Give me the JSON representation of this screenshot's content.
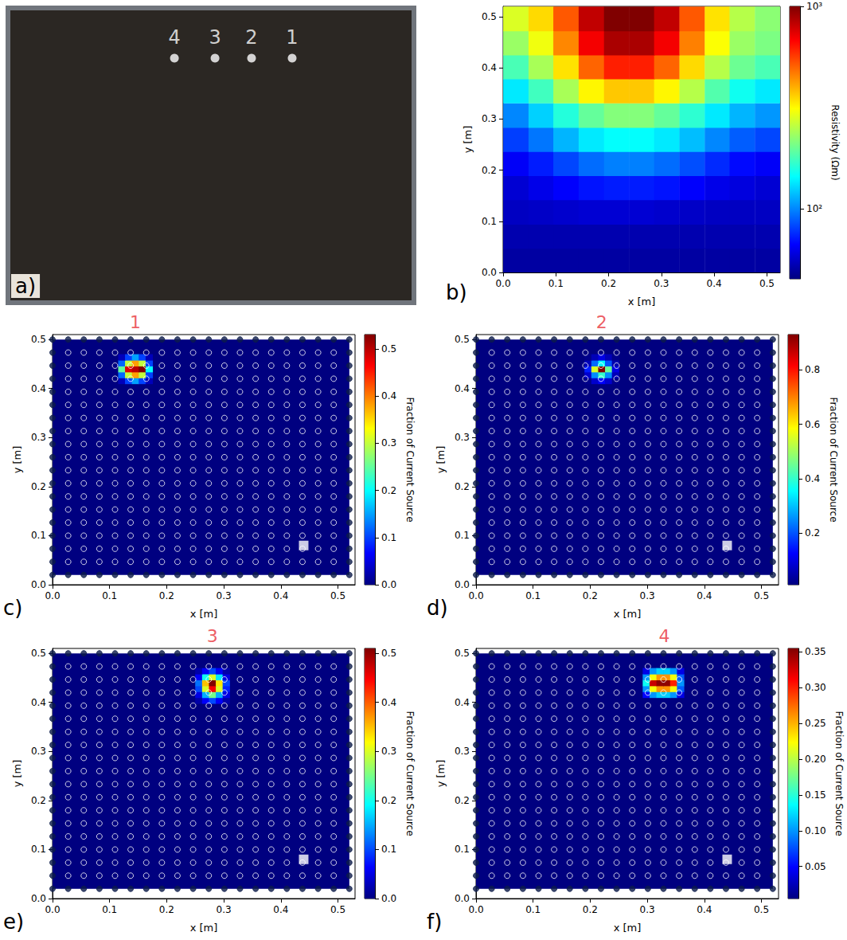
{
  "chart_data": [
    {
      "panel": "a)",
      "type": "scatter",
      "x": [
        0.41,
        0.51,
        0.6,
        0.7
      ],
      "values": [
        0.83,
        0.83,
        0.83,
        0.83
      ],
      "point_labels": [
        "4",
        "3",
        "2",
        "1"
      ],
      "color": "#ffffff",
      "marker": "circle",
      "xlim": [
        0,
        1
      ],
      "ylim": [
        0,
        1
      ],
      "tick_labels": false
    },
    {
      "panel": "b)",
      "type": "heatmap",
      "xlabel": "x [m]",
      "ylabel": "y [m]",
      "xlim": [
        0,
        0.525
      ],
      "ylim": [
        0,
        0.52
      ],
      "xticks": [
        {
          "value": 0,
          "label": "0.0"
        },
        0.1,
        0.2,
        0.3,
        0.4,
        0.5
      ],
      "yticks": [
        {
          "value": 0,
          "label": "0.0"
        },
        0.1,
        0.2,
        0.3,
        0.4,
        0.5
      ],
      "colorbar": {
        "label": "Resistivity (Ωm)",
        "log": true,
        "range": [
          45,
          1000
        ],
        "ticks": [
          {
            "value": 100,
            "label": "10²"
          },
          {
            "value": 1000,
            "label": "10³"
          }
        ]
      },
      "cells": {
        "x": [
          0.024,
          0.072,
          0.119,
          0.167,
          0.215,
          0.263,
          0.31,
          0.358,
          0.406,
          0.453,
          0.501
        ],
        "y": [
          0.024,
          0.071,
          0.118,
          0.166,
          0.213,
          0.26,
          0.307,
          0.355,
          0.402,
          0.449,
          0.496
        ],
        "size": [
          0.0477,
          0.0473
        ],
        "values": [
          [
            50,
            50,
            50,
            50,
            50,
            50,
            50,
            50,
            50,
            50,
            50
          ],
          [
            52,
            52,
            52,
            52,
            52,
            52,
            52,
            52,
            52,
            52,
            52
          ],
          [
            55,
            56,
            57,
            58,
            58,
            58,
            57,
            56,
            55,
            55,
            55
          ],
          [
            58,
            62,
            66,
            70,
            72,
            72,
            70,
            66,
            62,
            60,
            58
          ],
          [
            65,
            72,
            82,
            92,
            98,
            98,
            92,
            84,
            75,
            68,
            65
          ],
          [
            80,
            95,
            115,
            135,
            145,
            145,
            135,
            118,
            100,
            88,
            82
          ],
          [
            100,
            125,
            160,
            195,
            215,
            215,
            195,
            165,
            135,
            115,
            105
          ],
          [
            135,
            175,
            240,
            320,
            370,
            370,
            320,
            250,
            185,
            150,
            135
          ],
          [
            180,
            240,
            340,
            500,
            620,
            620,
            500,
            350,
            250,
            200,
            180
          ],
          [
            230,
            300,
            450,
            700,
            880,
            880,
            700,
            460,
            310,
            230,
            210
          ],
          [
            280,
            350,
            520,
            820,
            1000,
            1000,
            820,
            520,
            340,
            250,
            220
          ]
        ]
      }
    },
    {
      "panel": "c)",
      "type": "heatmap",
      "xlabel": "x [m]",
      "ylabel": "y [m]",
      "xlim": [
        0,
        0.53
      ],
      "ylim": [
        0,
        0.51
      ],
      "xticks": [
        {
          "value": 0,
          "label": "0.0"
        },
        0.1,
        0.2,
        0.3,
        0.4,
        0.5
      ],
      "yticks": [
        {
          "value": 0,
          "label": "0.0"
        },
        0.1,
        0.2,
        0.3,
        0.4,
        0.5
      ],
      "domain": {
        "x": [
          0,
          0.52
        ],
        "y": [
          0.02,
          0.5
        ]
      },
      "electrodes": {
        "marker": "circle",
        "x": [
          0,
          0.0274,
          0.0547,
          0.0821,
          0.1095,
          0.1368,
          0.1642,
          0.1916,
          0.2189,
          0.2463,
          0.2737,
          0.3011,
          0.3284,
          0.3558,
          0.3832,
          0.4105,
          0.4379,
          0.4653,
          0.4926,
          0.52
        ],
        "y": [
          0.02,
          0.0467,
          0.0733,
          0.1,
          0.1267,
          0.1533,
          0.18,
          0.2067,
          0.2333,
          0.26,
          0.2867,
          0.3133,
          0.34,
          0.3667,
          0.3933,
          0.42,
          0.4467,
          0.4733,
          0.5
        ]
      },
      "sink": {
        "x": 0.44,
        "y": 0.08,
        "marker": "square"
      },
      "source": {
        "text": "1",
        "x": 0.145,
        "y": 0.535,
        "color": "#e8333b"
      },
      "colorbar": {
        "label": "Fraction of Current Source",
        "range": [
          0,
          0.53
        ],
        "ticks": [
          {
            "value": 0,
            "label": "0.0"
          },
          0.1,
          0.2,
          0.3,
          0.4,
          0.5
        ]
      },
      "cells": {
        "x": [
          0.121,
          0.133,
          0.145,
          0.157,
          0.169
        ],
        "y": [
          0.416,
          0.428,
          0.44,
          0.452,
          0.464
        ],
        "size": [
          0.012,
          0.012
        ],
        "values": [
          [
            0.03,
            0.1,
            0.15,
            0.1,
            0.03
          ],
          [
            0.12,
            0.3,
            0.38,
            0.3,
            0.1
          ],
          [
            0.25,
            0.48,
            0.5,
            0.53,
            0.2
          ],
          [
            0.12,
            0.3,
            0.38,
            0.3,
            0.1
          ],
          [
            0.03,
            0.1,
            0.15,
            0.1,
            0.03
          ]
        ]
      }
    },
    {
      "panel": "d)",
      "type": "heatmap",
      "xlabel": "x [m]",
      "ylabel": "y [m]",
      "xlim": [
        0,
        0.53
      ],
      "ylim": [
        0,
        0.51
      ],
      "xticks": [
        {
          "value": 0,
          "label": "0.0"
        },
        0.1,
        0.2,
        0.3,
        0.4,
        0.5
      ],
      "yticks": [
        {
          "value": 0,
          "label": "0.0"
        },
        0.1,
        0.2,
        0.3,
        0.4,
        0.5
      ],
      "domain": {
        "x": [
          0,
          0.52
        ],
        "y": [
          0.02,
          0.5
        ]
      },
      "electrodes": {
        "marker": "circle",
        "x": [
          0,
          0.0274,
          0.0547,
          0.0821,
          0.1095,
          0.1368,
          0.1642,
          0.1916,
          0.2189,
          0.2463,
          0.2737,
          0.3011,
          0.3284,
          0.3558,
          0.3832,
          0.4105,
          0.4379,
          0.4653,
          0.4926,
          0.52
        ],
        "y": [
          0.02,
          0.0467,
          0.0733,
          0.1,
          0.1267,
          0.1533,
          0.18,
          0.2067,
          0.2333,
          0.26,
          0.2867,
          0.3133,
          0.34,
          0.3667,
          0.3933,
          0.42,
          0.4467,
          0.4733,
          0.5
        ]
      },
      "sink": {
        "x": 0.44,
        "y": 0.08,
        "marker": "square"
      },
      "source": {
        "text": "2",
        "x": 0.22,
        "y": 0.535,
        "color": "#e8333b"
      },
      "colorbar": {
        "label": "Fraction of Current Source",
        "range": [
          0.01,
          0.93
        ],
        "ticks": [
          0.2,
          0.4,
          0.6,
          0.8
        ]
      },
      "cells": {
        "x": [
          0.196,
          0.208,
          0.22,
          0.232,
          0.244
        ],
        "y": [
          0.416,
          0.428,
          0.44,
          0.452,
          0.464
        ],
        "size": [
          0.012,
          0.012
        ],
        "values": [
          [
            0.02,
            0.08,
            0.12,
            0.08,
            0.02
          ],
          [
            0.08,
            0.25,
            0.4,
            0.25,
            0.06
          ],
          [
            0.15,
            0.55,
            0.93,
            0.45,
            0.1
          ],
          [
            0.06,
            0.22,
            0.35,
            0.2,
            0.05
          ],
          [
            0.02,
            0.06,
            0.1,
            0.06,
            0.02
          ]
        ]
      }
    },
    {
      "panel": "e)",
      "type": "heatmap",
      "xlabel": "x [m]",
      "ylabel": "y [m]",
      "xlim": [
        0,
        0.53
      ],
      "ylim": [
        0,
        0.51
      ],
      "xticks": [
        {
          "value": 0,
          "label": "0.0"
        },
        0.1,
        0.2,
        0.3,
        0.4,
        0.5
      ],
      "yticks": [
        {
          "value": 0,
          "label": "0.0"
        },
        0.1,
        0.2,
        0.3,
        0.4,
        0.5
      ],
      "domain": {
        "x": [
          0,
          0.52
        ],
        "y": [
          0.02,
          0.5
        ]
      },
      "electrodes": {
        "marker": "circle",
        "x": [
          0,
          0.0274,
          0.0547,
          0.0821,
          0.1095,
          0.1368,
          0.1642,
          0.1916,
          0.2189,
          0.2463,
          0.2737,
          0.3011,
          0.3284,
          0.3558,
          0.3832,
          0.4105,
          0.4379,
          0.4653,
          0.4926,
          0.52
        ],
        "y": [
          0.02,
          0.0467,
          0.0733,
          0.1,
          0.1267,
          0.1533,
          0.18,
          0.2067,
          0.2333,
          0.26,
          0.2867,
          0.3133,
          0.34,
          0.3667,
          0.3933,
          0.42,
          0.4467,
          0.4733,
          0.5
        ]
      },
      "sink": {
        "x": 0.44,
        "y": 0.08,
        "marker": "square"
      },
      "source": {
        "text": "3",
        "x": 0.28,
        "y": 0.535,
        "color": "#e8333b"
      },
      "colorbar": {
        "label": "Fraction of Current Source",
        "range": [
          0,
          0.51
        ],
        "ticks": [
          {
            "value": 0,
            "label": "0.0"
          },
          0.1,
          0.2,
          0.3,
          0.4,
          0.5
        ]
      },
      "cells": {
        "x": [
          0.256,
          0.268,
          0.28,
          0.292,
          0.304
        ],
        "y": [
          0.404,
          0.416,
          0.428,
          0.44,
          0.452,
          0.464
        ],
        "size": [
          0.012,
          0.012
        ],
        "values": [
          [
            0.02,
            0.06,
            0.1,
            0.06,
            0.02
          ],
          [
            0.05,
            0.15,
            0.25,
            0.15,
            0.05
          ],
          [
            0.1,
            0.3,
            0.45,
            0.3,
            0.08
          ],
          [
            0.12,
            0.35,
            0.51,
            0.33,
            0.1
          ],
          [
            0.06,
            0.2,
            0.3,
            0.18,
            0.05
          ],
          [
            0.02,
            0.06,
            0.1,
            0.06,
            0.02
          ]
        ]
      }
    },
    {
      "panel": "f)",
      "type": "heatmap",
      "xlabel": "x [m]",
      "ylabel": "y [m]",
      "xlim": [
        0,
        0.53
      ],
      "ylim": [
        0,
        0.51
      ],
      "xticks": [
        {
          "value": 0,
          "label": "0.0"
        },
        0.1,
        0.2,
        0.3,
        0.4,
        0.5
      ],
      "yticks": [
        {
          "value": 0,
          "label": "0.0"
        },
        0.1,
        0.2,
        0.3,
        0.4,
        0.5
      ],
      "domain": {
        "x": [
          0,
          0.52
        ],
        "y": [
          0.02,
          0.5
        ]
      },
      "electrodes": {
        "marker": "circle",
        "x": [
          0,
          0.0274,
          0.0547,
          0.0821,
          0.1095,
          0.1368,
          0.1642,
          0.1916,
          0.2189,
          0.2463,
          0.2737,
          0.3011,
          0.3284,
          0.3558,
          0.3832,
          0.4105,
          0.4379,
          0.4653,
          0.4926,
          0.52
        ],
        "y": [
          0.02,
          0.0467,
          0.0733,
          0.1,
          0.1267,
          0.1533,
          0.18,
          0.2067,
          0.2333,
          0.26,
          0.2867,
          0.3133,
          0.34,
          0.3667,
          0.3933,
          0.42,
          0.4467,
          0.4733,
          0.5
        ]
      },
      "sink": {
        "x": 0.44,
        "y": 0.08,
        "marker": "square"
      },
      "source": {
        "text": "4",
        "x": 0.33,
        "y": 0.535,
        "color": "#e8333b"
      },
      "colorbar": {
        "label": "Fraction of Current Source",
        "range": [
          0.005,
          0.355
        ],
        "ticks": [
          0.05,
          {
            "value": 0.1,
            "label": "0.10"
          },
          0.15,
          {
            "value": 0.2,
            "label": "0.20"
          },
          0.25,
          {
            "value": 0.3,
            "label": "0.30"
          },
          0.35
        ]
      },
      "cells": {
        "x": [
          0.298,
          0.31,
          0.322,
          0.334,
          0.346,
          0.358
        ],
        "y": [
          0.416,
          0.428,
          0.44,
          0.452,
          0.464
        ],
        "size": [
          0.012,
          0.012
        ],
        "values": [
          [
            0.05,
            0.1,
            0.12,
            0.12,
            0.1,
            0.04
          ],
          [
            0.1,
            0.22,
            0.26,
            0.26,
            0.22,
            0.08
          ],
          [
            0.14,
            0.33,
            0.35,
            0.35,
            0.3,
            0.1
          ],
          [
            0.1,
            0.22,
            0.26,
            0.26,
            0.22,
            0.08
          ],
          [
            0.04,
            0.1,
            0.12,
            0.12,
            0.1,
            0.04
          ]
        ]
      }
    }
  ]
}
